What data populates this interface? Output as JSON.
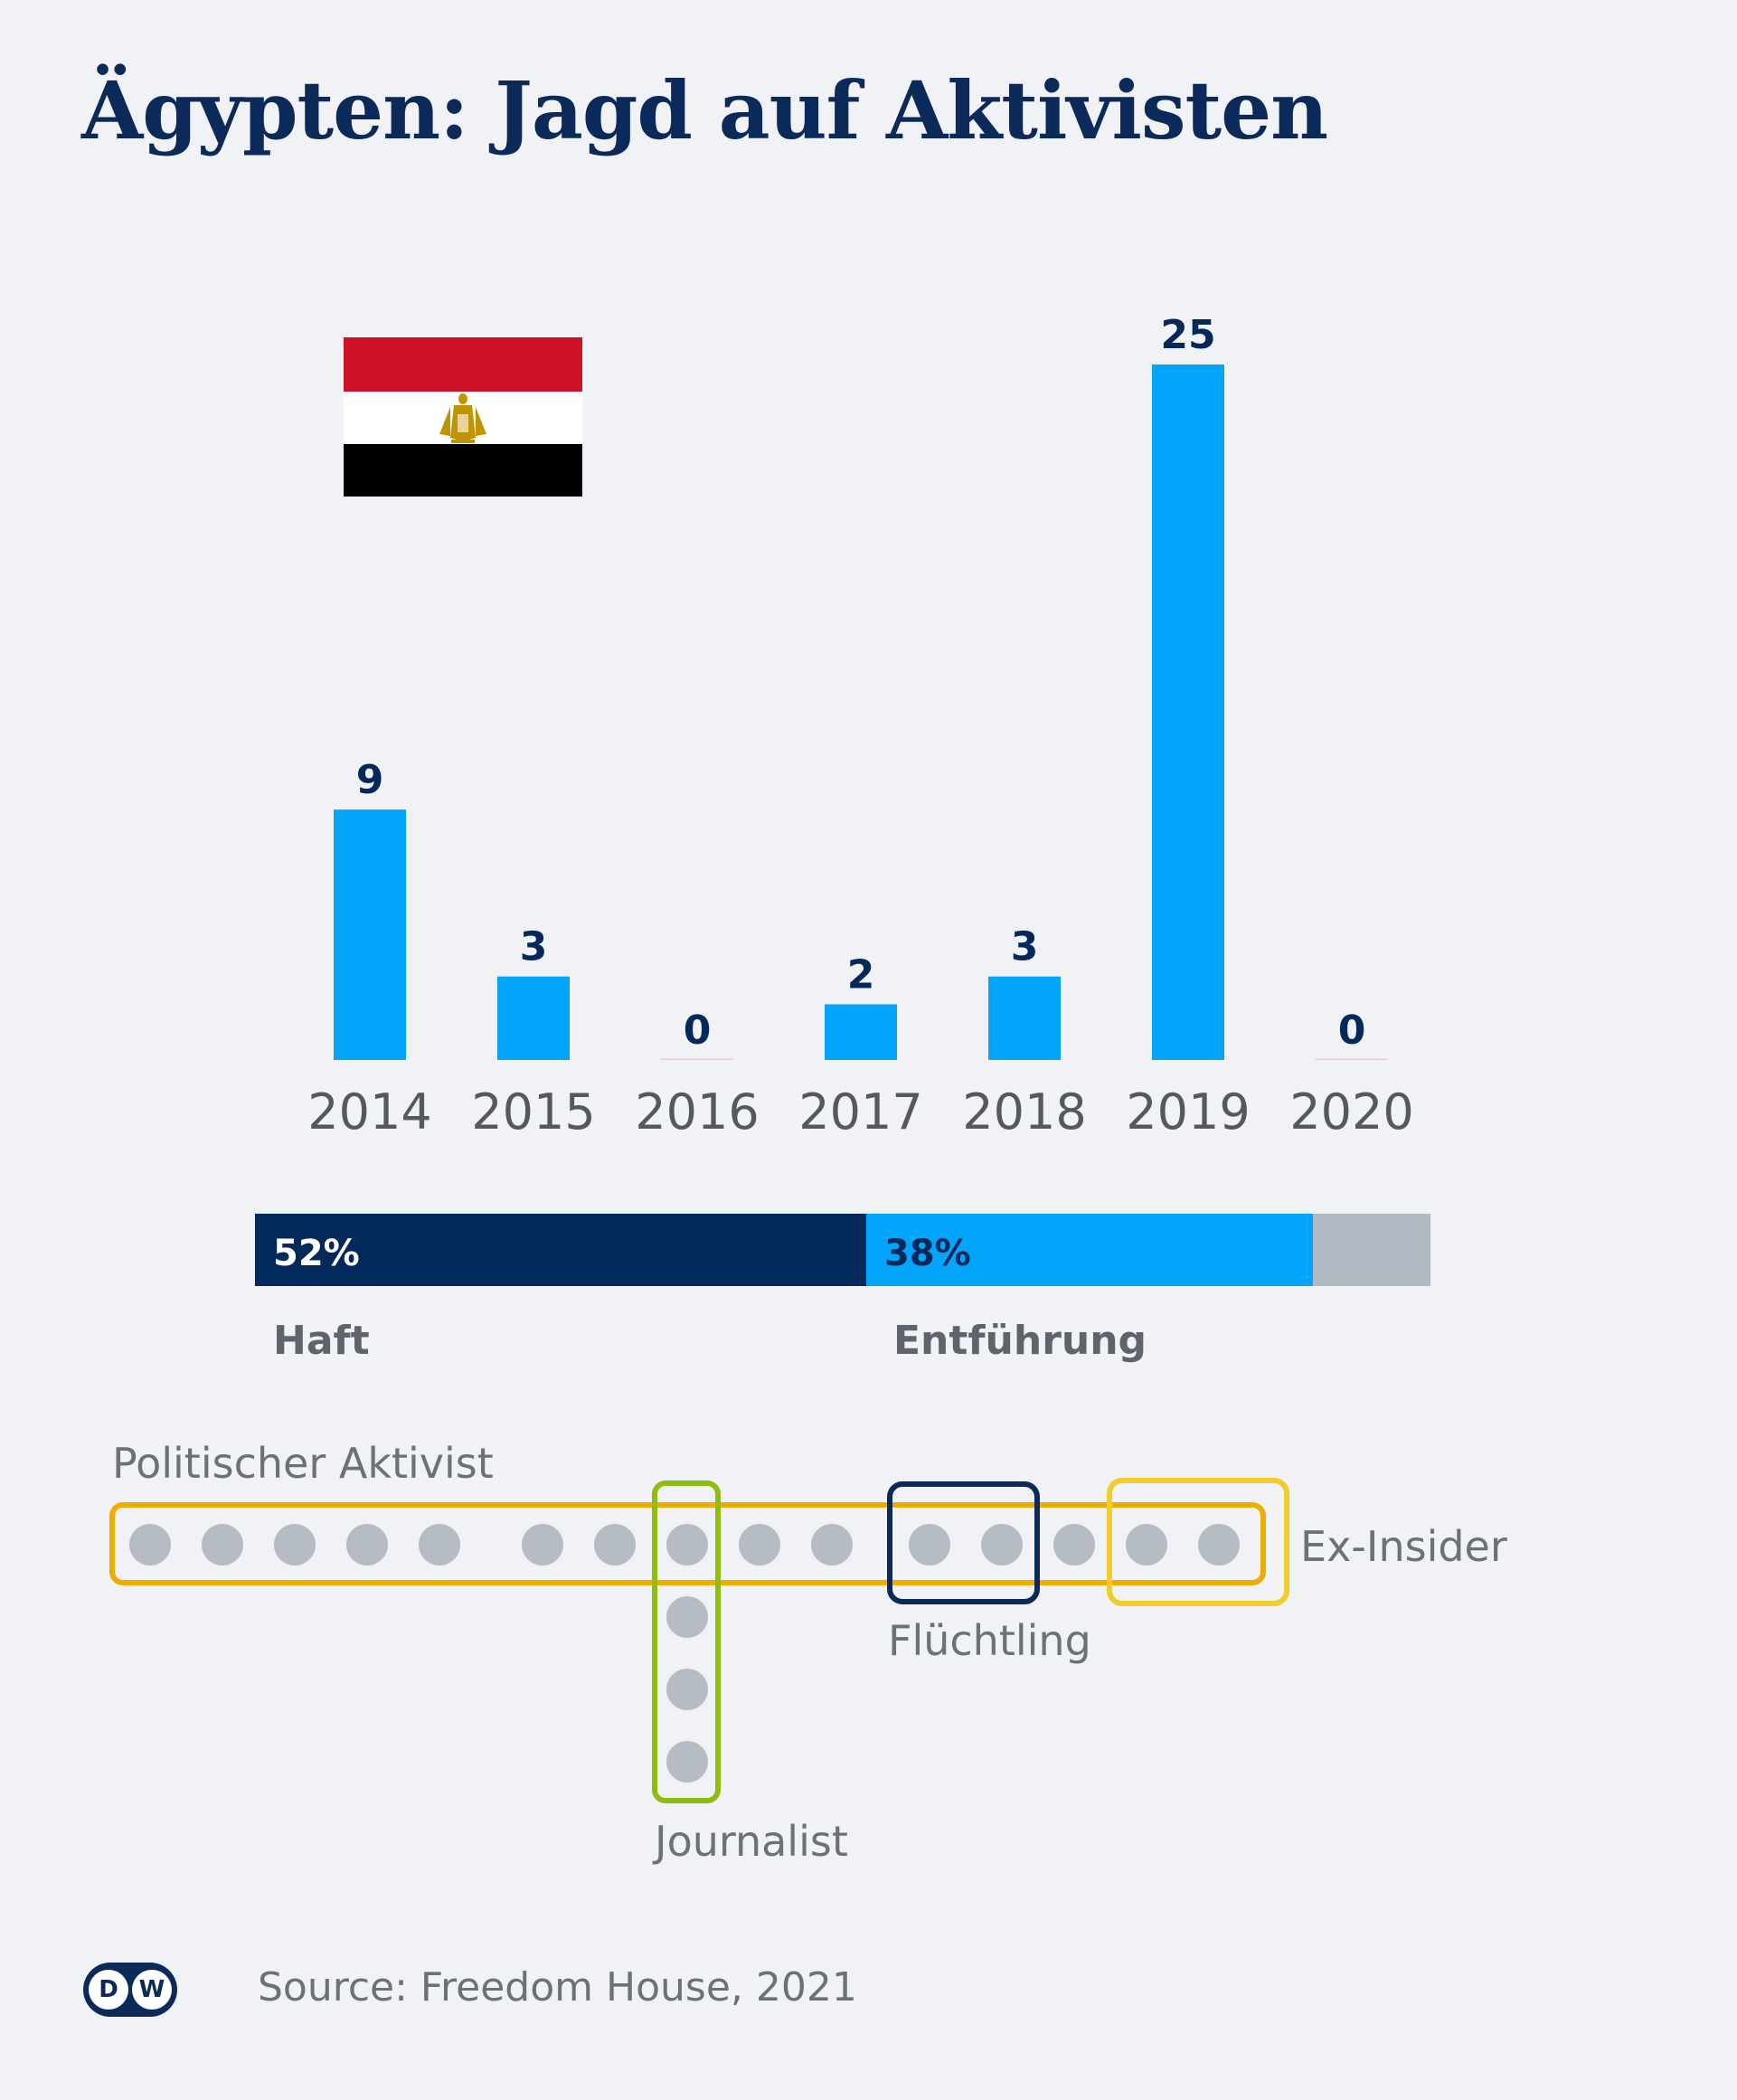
{
  "title": "Ägypten: Jagd auf Aktivisten",
  "source": "Source: Freedom House, 2021",
  "logo": {
    "left": "D",
    "right": "W"
  },
  "colors": {
    "bar": "#03a5fb",
    "dark": "#03285a",
    "other": "#b1bac2",
    "dot": "#b5bcc4",
    "politischer": "#f0ac00",
    "journalist": "#90bc10",
    "fluechtling": "#0b2a5a",
    "exinsider": "#f2cc2a"
  },
  "chart_data": [
    {
      "type": "bar",
      "categories": [
        "2014",
        "2015",
        "2016",
        "2017",
        "2018",
        "2019",
        "2020"
      ],
      "values": [
        9,
        3,
        0,
        2,
        3,
        25,
        0
      ],
      "ylim": [
        0,
        25
      ]
    },
    {
      "type": "bar",
      "orientation": "horizontal-stacked",
      "segments": [
        {
          "label": "Haft",
          "value": 52,
          "text": "52%"
        },
        {
          "label": "Entführung",
          "value": 38,
          "text": "38%"
        },
        {
          "label": "",
          "value": 10,
          "text": ""
        }
      ]
    }
  ],
  "groups": [
    {
      "label": "Politischer Aktivist"
    },
    {
      "label": "Journalist"
    },
    {
      "label": "Flüchtling"
    },
    {
      "label": "Ex-Insider"
    }
  ]
}
